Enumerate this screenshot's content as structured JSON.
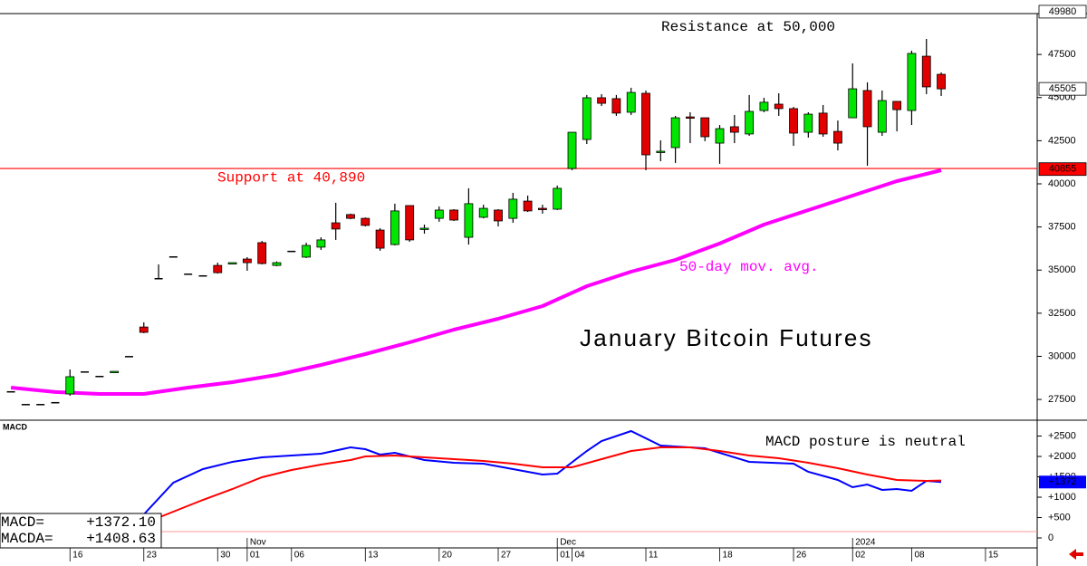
{
  "chart_data": [
    {
      "type": "candlestick",
      "title": "January Bitcoin Futures",
      "open": [
        27980,
        27240,
        27240,
        27350,
        27820,
        29130,
        28870,
        29110,
        30020,
        31700,
        34540,
        35800,
        34800,
        34700,
        35270,
        35400,
        35640,
        36590,
        35270,
        36120,
        35750,
        36330,
        37740,
        38220,
        38000,
        37320,
        36480,
        38740,
        37380,
        38000,
        38480,
        36900,
        38060,
        38480,
        38000,
        39000,
        38580,
        38530,
        40890,
        42570,
        44990,
        44940,
        44150,
        45250,
        41840,
        42100,
        43880,
        43830,
        42360,
        43310,
        42890,
        44250,
        44620,
        44360,
        42990,
        44100,
        43040,
        43830,
        45410,
        42990,
        44780,
        44250,
        47400,
        46350
      ],
      "high": [
        27980,
        27240,
        27240,
        27350,
        29240,
        29130,
        28870,
        29130,
        30020,
        31970,
        35330,
        35800,
        34800,
        34700,
        35430,
        35430,
        35750,
        36690,
        35500,
        36120,
        36590,
        36900,
        38900,
        38270,
        38050,
        37430,
        38850,
        38740,
        37640,
        38690,
        38530,
        39740,
        38790,
        38530,
        39480,
        39320,
        38790,
        39900,
        42990,
        45150,
        45200,
        45150,
        45570,
        45410,
        42520,
        43940,
        44150,
        43830,
        43410,
        43990,
        45150,
        44990,
        45250,
        44460,
        44150,
        44570,
        43670,
        46980,
        45880,
        45410,
        44780,
        47720,
        48400,
        46460
      ],
      "low": [
        27980,
        27240,
        27240,
        27350,
        27710,
        29130,
        28870,
        29110,
        30020,
        31340,
        34490,
        35800,
        34800,
        34700,
        34800,
        35400,
        34960,
        35330,
        35220,
        36120,
        35700,
        36170,
        36750,
        37950,
        37530,
        36120,
        36430,
        36640,
        37110,
        37800,
        37850,
        36480,
        38000,
        37530,
        37740,
        38370,
        38270,
        38480,
        40790,
        42310,
        44510,
        43940,
        43990,
        40790,
        41310,
        41210,
        42360,
        42470,
        41160,
        42360,
        42780,
        44150,
        43940,
        42200,
        42680,
        42730,
        41940,
        43830,
        41050,
        42780,
        43040,
        43410,
        45200,
        45090
      ],
      "close": [
        27980,
        27240,
        27240,
        27350,
        28820,
        29130,
        28870,
        29130,
        30020,
        31390,
        34540,
        35800,
        34800,
        34700,
        34850,
        35430,
        35430,
        35380,
        35430,
        36120,
        36430,
        36750,
        37380,
        38000,
        37590,
        36270,
        38430,
        36750,
        37430,
        38480,
        37900,
        38850,
        38580,
        37850,
        39110,
        38430,
        38530,
        39740,
        42990,
        44990,
        44670,
        44100,
        45300,
        41680,
        41890,
        43830,
        43830,
        42730,
        43200,
        42990,
        44200,
        44730,
        44360,
        42940,
        44040,
        42890,
        42360,
        45510,
        43310,
        44830,
        44300,
        47560,
        45620,
        45505
      ],
      "up_color": "#00e600",
      "down_color": "#e00000",
      "doji_color": "#000000",
      "xlim": [
        -0.74,
        69.5
      ],
      "xticks": [
        {
          "value": 4,
          "label": "16"
        },
        {
          "value": 9,
          "label": "23"
        },
        {
          "value": 14,
          "label": "30"
        },
        {
          "value": 16,
          "label": "01"
        },
        {
          "value": 19,
          "label": "06"
        },
        {
          "value": 24,
          "label": "13"
        },
        {
          "value": 29,
          "label": "20"
        },
        {
          "value": 33,
          "label": "27"
        },
        {
          "value": 37,
          "label": "01"
        },
        {
          "value": 38,
          "label": "04"
        },
        {
          "value": 43,
          "label": "11"
        },
        {
          "value": 48,
          "label": "18"
        },
        {
          "value": 53,
          "label": "26"
        },
        {
          "value": 57,
          "label": "02"
        },
        {
          "value": 61,
          "label": "08"
        },
        {
          "value": 66,
          "label": "15"
        }
      ],
      "period_labels": [
        {
          "value": 16,
          "label": "Nov"
        },
        {
          "value": 37,
          "label": "Dec"
        },
        {
          "value": 57,
          "label": "2024"
        }
      ],
      "ylim": [
        26350,
        49870
      ],
      "yticks": [
        47500,
        45000,
        42500,
        40000,
        37500,
        35000,
        32500,
        30000,
        27500
      ],
      "price_labels": [
        49980,
        45505,
        40855
      ],
      "price_label_colors": [
        "#ffffff",
        "#ffffff",
        "#ff0000"
      ],
      "moving_average": {
        "name": "50-day mov. avg.",
        "color": "#ff00ff",
        "x": [
          0,
          3,
          6,
          9,
          12,
          15,
          18,
          21,
          24,
          27,
          30,
          33,
          36,
          39,
          42,
          45,
          48,
          51,
          54,
          57,
          60,
          63
        ],
        "values": [
          28190,
          27930,
          27820,
          27820,
          28190,
          28500,
          28920,
          29500,
          30130,
          30810,
          31550,
          32180,
          32910,
          34070,
          34910,
          35590,
          36540,
          37640,
          38480,
          39320,
          40160,
          40790
        ]
      },
      "support": {
        "label": "Support at 40,890",
        "value": 40890,
        "color": "#ff0000"
      },
      "annotation": "Resistance at 50,000"
    },
    {
      "type": "line",
      "title": "MACD",
      "annotation": "MACD posture is neutral",
      "series": [
        {
          "name": "MACD=",
          "readout": "+1372.10",
          "color": "#0000ff",
          "x": [
            9,
            11,
            13,
            15,
            17,
            19,
            21,
            23,
            24,
            25,
            26,
            28,
            30,
            32,
            34,
            36,
            37,
            39,
            40,
            42,
            44,
            47,
            50,
            53,
            54,
            56,
            57,
            58,
            59,
            60,
            61,
            62,
            63
          ],
          "values": [
            578,
            1356,
            1689,
            1867,
            1978,
            2022,
            2067,
            2222,
            2178,
            2044,
            2089,
            1911,
            1844,
            1822,
            1689,
            1556,
            1578,
            2133,
            2378,
            2622,
            2267,
            2200,
            1867,
            1822,
            1622,
            1422,
            1244,
            1311,
            1178,
            1200,
            1156,
            1400,
            1372.1
          ]
        },
        {
          "name": "MACDA=",
          "readout": "+1408.63",
          "color": "#ff0000",
          "x": [
            9,
            11,
            13,
            15,
            17,
            19,
            21,
            23,
            24,
            26,
            28,
            30,
            32,
            34,
            36,
            38,
            40,
            42,
            44,
            46,
            48,
            50,
            52,
            54,
            56,
            58,
            60,
            62,
            63
          ],
          "values": [
            356,
            644,
            933,
            1200,
            1489,
            1667,
            1800,
            1911,
            2000,
            2022,
            1978,
            1933,
            1889,
            1822,
            1733,
            1733,
            1933,
            2133,
            2222,
            2222,
            2133,
            2022,
            1956,
            1844,
            1711,
            1556,
            1422,
            1400,
            1408.63
          ]
        }
      ],
      "ylim": [
        -244,
        2867
      ],
      "yticks": [
        {
          "value": 2500,
          "label": "+2500"
        },
        {
          "value": 2000,
          "label": "+2000"
        },
        {
          "value": 1500,
          "label": "+1500"
        },
        {
          "value": 1000,
          "label": "+1000"
        },
        {
          "value": 500,
          "label": "+500"
        },
        0
      ],
      "zero_line": 0,
      "last_label": {
        "value": 1372,
        "label": "+1372"
      }
    }
  ]
}
